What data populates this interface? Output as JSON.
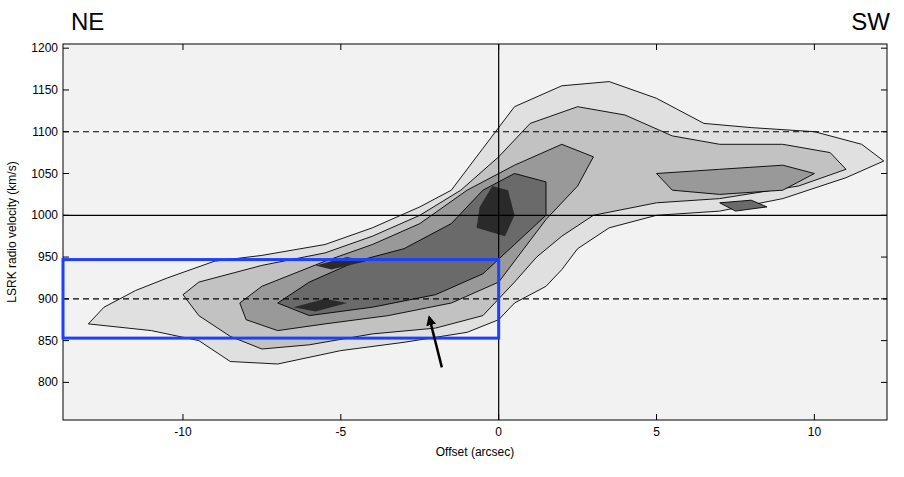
{
  "chart_data": {
    "type": "contour",
    "xlabel": "Offset (arcsec)",
    "ylabel": "LSRK radio velocity (km/s)",
    "annotations": [
      {
        "text": "NE"
      },
      {
        "text": "SW"
      }
    ],
    "xlim": [
      -13.8,
      12.3
    ],
    "ylim": [
      755,
      1205
    ],
    "xticks": [
      -10,
      -5,
      0,
      5,
      10
    ],
    "yticks": [
      800,
      850,
      900,
      950,
      1000,
      1050,
      1100,
      1150,
      1200
    ],
    "contours": [
      {
        "polygons": [
          {
            "x": [
              -10.5,
              -9,
              -7.5,
              -5.5,
              -4,
              -2.5,
              -1.5,
              -0.5,
              0.5,
              2,
              3.5,
              5,
              6.5,
              8,
              10,
              11.5,
              12.2,
              11,
              9,
              7,
              5,
              3.5,
              2.5,
              2,
              1.5,
              0.5,
              0,
              -1,
              -3,
              -5,
              -7,
              -8.5,
              -9.5,
              -11,
              -13,
              -12.5,
              -11.5
            ],
            "y": [
              925,
              945,
              952,
              965,
              985,
              1010,
              1030,
              1080,
              1130,
              1155,
              1160,
              1140,
              1110,
              1105,
              1100,
              1085,
              1065,
              1045,
              1020,
              1005,
              1000,
              985,
              960,
              935,
              915,
              895,
              875,
              860,
              848,
              838,
              822,
              825,
              850,
              862,
              870,
              890,
              910
            ]
          }
        ]
      },
      {
        "polygons": [
          {
            "x": [
              -9.5,
              -7.5,
              -5.5,
              -4,
              -2.5,
              -1.2,
              0,
              1,
              2.5,
              4,
              5.5,
              7,
              9,
              10.5,
              11,
              9.5,
              7,
              5,
              3,
              2,
              1.2,
              0.5,
              -0.5,
              -2,
              -4,
              -6,
              -7.5,
              -8.5,
              -9.5,
              -10
            ],
            "y": [
              920,
              940,
              955,
              975,
              1000,
              1030,
              1070,
              1110,
              1130,
              1120,
              1095,
              1085,
              1085,
              1075,
              1055,
              1035,
              1020,
              1015,
              1000,
              975,
              950,
              920,
              880,
              865,
              858,
              845,
              840,
              855,
              880,
              905
            ]
          }
        ]
      },
      {
        "polygons": [
          {
            "x": [
              -7.5,
              -5.5,
              -4,
              -2.5,
              -1,
              0.5,
              2,
              3,
              2.5,
              1.5,
              0.8,
              0,
              -1.5,
              -3.5,
              -5.5,
              -7,
              -8,
              -8.2
            ],
            "y": [
              915,
              945,
              965,
              990,
              1030,
              1060,
              1085,
              1070,
              1035,
              995,
              960,
              920,
              895,
              880,
              870,
              862,
              875,
              895
            ]
          },
          {
            "x": [
              5,
              7,
              9,
              10,
              9,
              7,
              5.5
            ],
            "y": [
              1050,
              1055,
              1060,
              1050,
              1030,
              1025,
              1030
            ]
          }
        ]
      },
      {
        "polygons": [
          {
            "x": [
              -7,
              -6,
              -4.5,
              -3,
              -1.5,
              -0.5,
              0.5,
              1.5,
              1.5,
              0.5,
              -0.5,
              -2,
              -4,
              -6
            ],
            "y": [
              895,
              920,
              945,
              960,
              990,
              1030,
              1050,
              1040,
              1000,
              965,
              930,
              905,
              890,
              880
            ]
          },
          {
            "x": [
              7,
              8,
              8.5,
              7.5
            ],
            "y": [
              1015,
              1018,
              1010,
              1005
            ]
          }
        ]
      },
      {
        "polygons": [
          {
            "x": [
              -0.7,
              -0.6,
              -0.2,
              0.3,
              0.5,
              0.2
            ],
            "y": [
              985,
              1010,
              1035,
              1030,
              1000,
              975
            ]
          },
          {
            "x": [
              -6.5,
              -5.5,
              -4.8,
              -5.8
            ],
            "y": [
              890,
              900,
              895,
              885
            ]
          },
          {
            "x": [
              -5.8,
              -4.8,
              -4.2,
              -5.3
            ],
            "y": [
              940,
              950,
              945,
              935
            ]
          }
        ]
      }
    ],
    "hlines": [
      {
        "y": 900,
        "line_style": "dashed"
      },
      {
        "y": 1000,
        "line_style": "solid"
      },
      {
        "y": 1100,
        "line_style": "dashed"
      }
    ],
    "vlines": [
      {
        "x": 0,
        "line_style": "solid"
      }
    ],
    "box": {
      "x": [
        -13.8,
        0
      ],
      "y": [
        853,
        947
      ],
      "color": "#1f3fff"
    },
    "arrow": {
      "x": [
        -1.8,
        -2.2
      ],
      "y": [
        818,
        878
      ]
    }
  }
}
